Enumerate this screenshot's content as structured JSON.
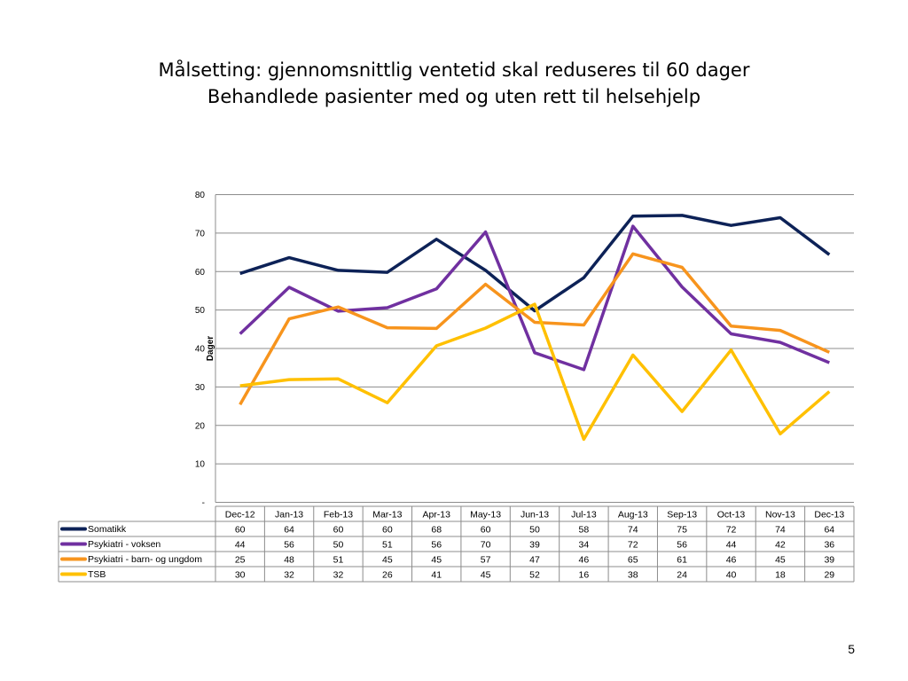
{
  "slide": {
    "title_line1": "Målsetting: gjennomsnittlig ventetid skal reduseres til 60 dager",
    "title_line2": "Behandlede pasienter med og uten rett til helsehjelp",
    "page_number": "5"
  },
  "chart_data": {
    "type": "line",
    "title": "",
    "xlabel": "",
    "ylabel": "Dager",
    "ylim": [
      0,
      80
    ],
    "yticks": [
      0,
      10,
      20,
      30,
      40,
      50,
      60,
      70,
      80
    ],
    "ytick_labels": [
      "-",
      "10",
      "20",
      "30",
      "40",
      "50",
      "60",
      "70",
      "80"
    ],
    "grid": true,
    "legend": "data-table",
    "categories": [
      "Dec-12",
      "Jan-13",
      "Feb-13",
      "Mar-13",
      "Apr-13",
      "May-13",
      "Jun-13",
      "Jul-13",
      "Aug-13",
      "Sep-13",
      "Oct-13",
      "Nov-13",
      "Dec-13"
    ],
    "series": [
      {
        "name": "Somatikk",
        "color": "#0d2257",
        "values": [
          59.5,
          63.6,
          60.3,
          59.8,
          68.4,
          60.3,
          49.8,
          58.4,
          74.4,
          74.6,
          72.0,
          74.0,
          64.4
        ],
        "table_values": [
          "60",
          "64",
          "60",
          "60",
          "68",
          "60",
          "50",
          "58",
          "74",
          "75",
          "72",
          "74",
          "64"
        ]
      },
      {
        "name": "Psykiatri - voksen",
        "color": "#7030a0",
        "values": [
          43.8,
          55.9,
          49.7,
          50.6,
          55.5,
          70.3,
          38.9,
          34.5,
          71.8,
          56.0,
          43.8,
          41.6,
          36.3
        ],
        "table_values": [
          "44",
          "56",
          "50",
          "51",
          "56",
          "70",
          "39",
          "34",
          "72",
          "56",
          "44",
          "42",
          "36"
        ]
      },
      {
        "name": "Psykiatri - barn- og ungdom",
        "color": "#f7941d",
        "values": [
          25.4,
          47.7,
          50.8,
          45.4,
          45.2,
          56.7,
          46.8,
          46.1,
          64.6,
          61.1,
          45.8,
          44.7,
          39.0
        ],
        "table_values": [
          "25",
          "48",
          "51",
          "45",
          "45",
          "57",
          "47",
          "46",
          "65",
          "61",
          "46",
          "45",
          "39"
        ]
      },
      {
        "name": "TSB",
        "color": "#ffc000",
        "values": [
          30.3,
          31.9,
          32.1,
          25.9,
          40.7,
          45.3,
          51.5,
          16.4,
          38.3,
          23.6,
          39.6,
          17.8,
          28.8
        ],
        "table_values": [
          "30",
          "32",
          "32",
          "26",
          "41",
          "45",
          "52",
          "16",
          "38",
          "24",
          "40",
          "18",
          "29"
        ]
      }
    ]
  }
}
